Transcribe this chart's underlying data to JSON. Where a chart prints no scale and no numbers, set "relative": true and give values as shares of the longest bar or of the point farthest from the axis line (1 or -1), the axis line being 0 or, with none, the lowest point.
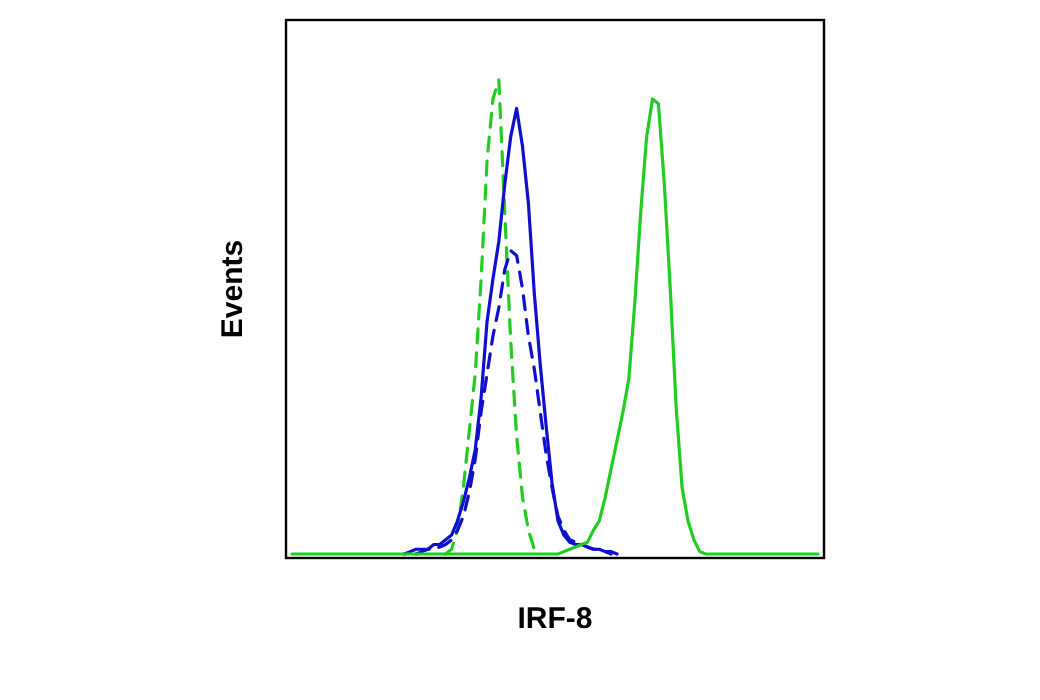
{
  "chart_data": {
    "type": "line",
    "relative": true,
    "xlabel": "IRF-8",
    "ylabel": "Events",
    "grid": false,
    "marker": "none",
    "categories": [
      null,
      null,
      null,
      null,
      null,
      null,
      null,
      null,
      null,
      null,
      null,
      null,
      null,
      null,
      null,
      null,
      null,
      null,
      null,
      null,
      null,
      null,
      null,
      null,
      null,
      null,
      null,
      null,
      null,
      null,
      null,
      null,
      null,
      null,
      null,
      null,
      null,
      null,
      null,
      null,
      null,
      null,
      null,
      null,
      null,
      null,
      null,
      null,
      null,
      null,
      null,
      null,
      null,
      null,
      null,
      null,
      null,
      null,
      null,
      null,
      null,
      null,
      null,
      null,
      null,
      null,
      null,
      null,
      null,
      null,
      null,
      null,
      null,
      null,
      null,
      null,
      null,
      null,
      null,
      null,
      null,
      null,
      null,
      null,
      null,
      null,
      null,
      null,
      null,
      null
    ],
    "series": [
      {
        "color": "#22cc22",
        "line_style": "dashed",
        "values": [
          null,
          null,
          null,
          null,
          null,
          null,
          null,
          null,
          null,
          null,
          null,
          null,
          null,
          null,
          null,
          null,
          null,
          null,
          null,
          null,
          null,
          null,
          null,
          null,
          null,
          null,
          0,
          0.01,
          0.05,
          0.14,
          0.26,
          0.38,
          0.58,
          0.83,
          0.96,
          1,
          0.72,
          0.45,
          0.25,
          0.12,
          0.05,
          0.01,
          0,
          null,
          null,
          null,
          null,
          null,
          null,
          null,
          null,
          null,
          null,
          null,
          null,
          null,
          null,
          null,
          null,
          null,
          null,
          null,
          null,
          null,
          null,
          null,
          null,
          null,
          null,
          null,
          null,
          null,
          null,
          null,
          null,
          null,
          null,
          null,
          null,
          null,
          null,
          null,
          null,
          null,
          null,
          null,
          null,
          null,
          null,
          null
        ]
      },
      {
        "color": "#1010cc",
        "line_style": "dashed",
        "values": [
          null,
          null,
          null,
          null,
          null,
          null,
          null,
          null,
          null,
          null,
          null,
          null,
          null,
          null,
          null,
          null,
          null,
          null,
          null,
          null,
          null,
          0,
          0.005,
          0.01,
          0.01,
          0.015,
          0.02,
          0.03,
          0.05,
          0.08,
          0.13,
          0.2,
          0.3,
          0.38,
          0.46,
          0.52,
          0.6,
          0.64,
          0.63,
          0.56,
          0.46,
          0.39,
          0.3,
          0.21,
          0.14,
          0.08,
          0.05,
          0.03,
          0.025,
          0.02,
          0.015,
          0.01,
          0.01,
          0.005,
          0,
          null,
          null,
          null,
          null,
          null,
          null,
          null,
          null,
          null,
          null,
          null,
          null,
          null,
          null,
          null,
          null,
          null,
          null,
          null,
          null,
          null,
          null,
          null,
          null,
          null,
          null,
          null,
          null,
          null,
          null,
          null,
          null,
          null,
          null,
          null
        ]
      },
      {
        "color": "#1010cc",
        "line_style": "solid",
        "values": [
          null,
          null,
          null,
          null,
          null,
          null,
          null,
          null,
          null,
          null,
          null,
          null,
          null,
          null,
          null,
          null,
          null,
          null,
          null,
          0,
          0.005,
          0.01,
          0.01,
          0.01,
          0.02,
          0.02,
          0.03,
          0.04,
          0.07,
          0.11,
          0.16,
          0.22,
          0.33,
          0.49,
          0.58,
          0.66,
          0.78,
          0.88,
          0.94,
          0.86,
          0.74,
          0.55,
          0.4,
          0.27,
          0.15,
          0.07,
          0.04,
          0.025,
          0.02,
          0.02,
          0.015,
          0.01,
          0.01,
          0.005,
          0.005,
          0,
          null,
          null,
          null,
          null,
          null,
          null,
          null,
          null,
          null,
          null,
          null,
          null,
          null,
          null,
          null,
          null,
          null,
          null,
          null,
          null,
          null,
          null,
          null,
          null,
          null,
          null,
          null,
          null,
          null,
          null,
          null,
          null,
          null,
          null
        ]
      },
      {
        "color": "#22cc22",
        "line_style": "solid",
        "values": [
          0,
          0,
          0,
          0,
          0,
          0,
          0,
          0,
          0,
          0,
          0,
          0,
          0,
          0,
          0,
          0,
          0,
          0,
          0,
          0,
          0,
          0,
          0,
          0,
          0,
          0,
          0,
          0,
          0,
          0,
          0,
          0,
          0,
          0,
          0,
          0,
          0,
          0,
          0,
          0,
          0,
          0,
          0,
          0,
          0,
          0,
          0.005,
          0.01,
          0.015,
          0.02,
          0.025,
          0.05,
          0.07,
          0.12,
          0.18,
          0.24,
          0.3,
          0.37,
          0.53,
          0.72,
          0.88,
          0.96,
          0.95,
          0.78,
          0.56,
          0.31,
          0.14,
          0.07,
          0.03,
          0.005,
          0,
          0,
          0,
          0,
          0,
          0,
          0,
          0,
          0,
          0,
          0,
          0,
          0,
          0,
          0,
          0,
          0,
          0,
          0,
          0
        ]
      }
    ]
  }
}
